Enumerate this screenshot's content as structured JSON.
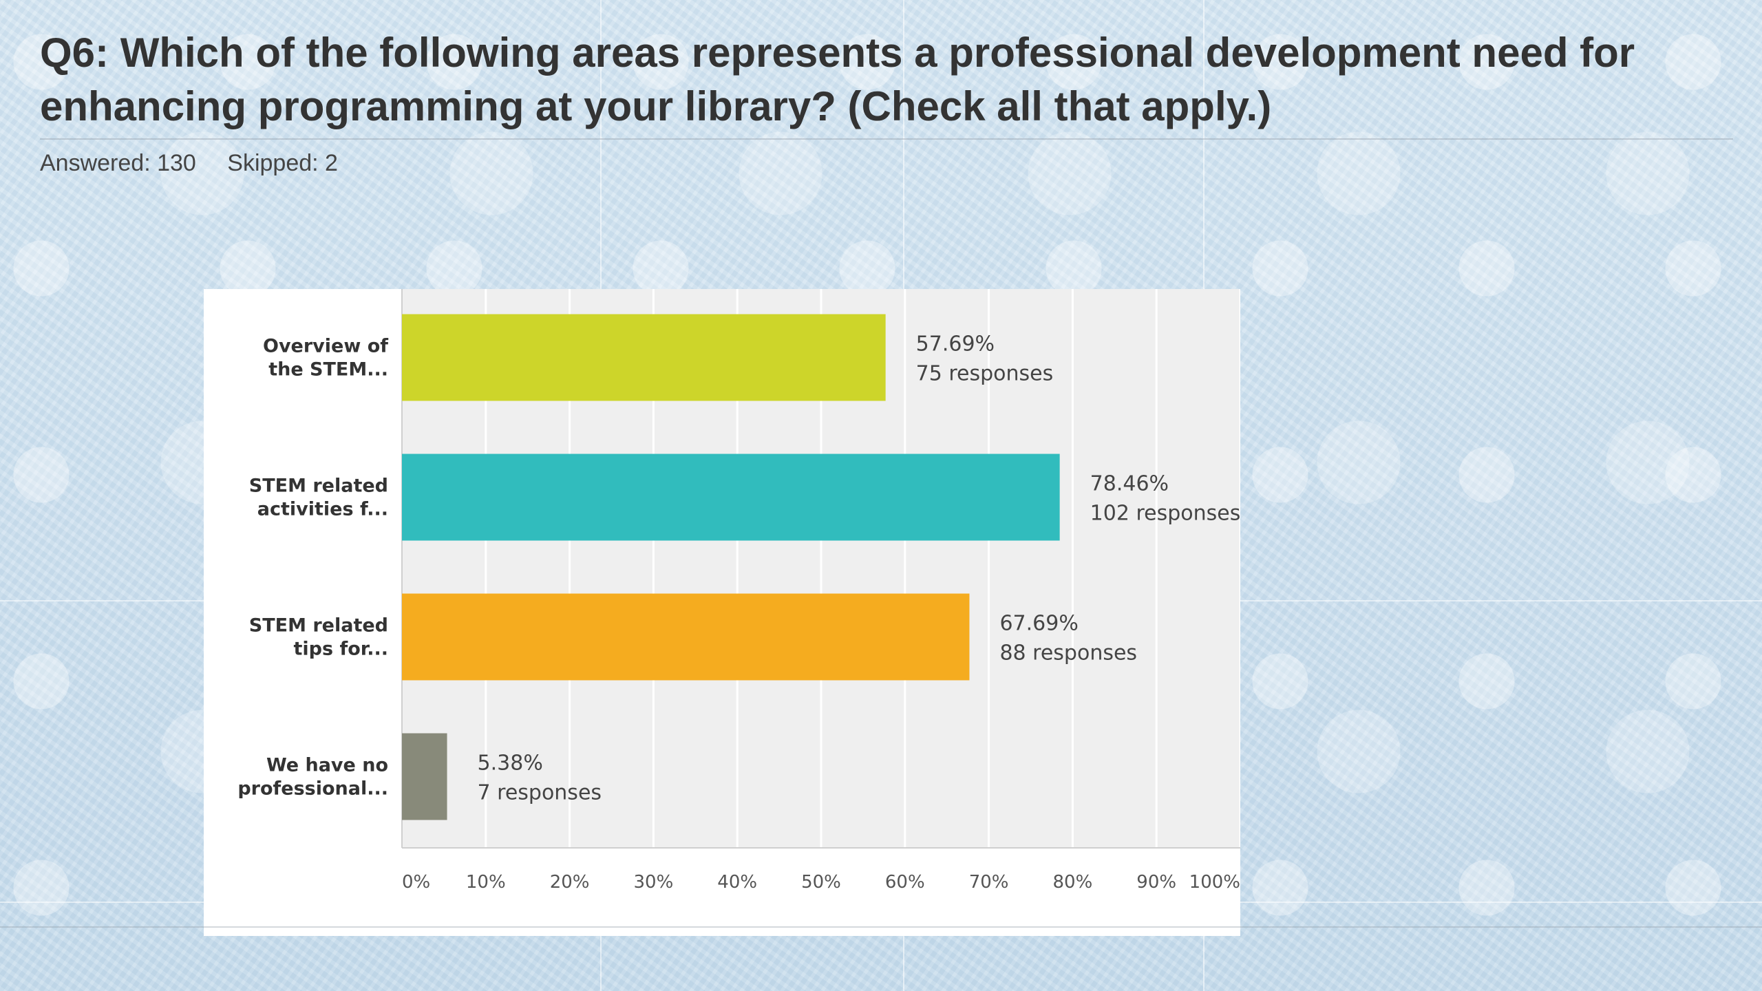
{
  "question": {
    "title": "Q6: Which of the following areas represents a professional development need for enhancing programming at your library? (Check all that apply.)",
    "answered": "Answered: 130",
    "skipped": "Skipped: 2"
  },
  "chart_data": {
    "type": "bar",
    "orientation": "horizontal",
    "categories": [
      [
        "Overview of",
        "the STEM..."
      ],
      [
        "STEM related",
        "activities f..."
      ],
      [
        "STEM related",
        "tips for..."
      ],
      [
        "We have no",
        "professional..."
      ]
    ],
    "values": [
      57.69,
      78.46,
      67.69,
      5.38
    ],
    "value_labels": [
      "57.69%",
      "78.46%",
      "67.69%",
      "5.38%"
    ],
    "response_labels": [
      "75 responses",
      "102 responses",
      "88 responses",
      "7 responses"
    ],
    "colors": [
      "#cdd52a",
      "#31bcbd",
      "#f5ac1f",
      "#888a7a"
    ],
    "xlim": [
      0,
      100
    ],
    "xticks": [
      "0%",
      "10%",
      "20%",
      "30%",
      "40%",
      "50%",
      "60%",
      "70%",
      "80%",
      "90%",
      "100%"
    ],
    "grid": true,
    "plot_background": "#efefef"
  }
}
